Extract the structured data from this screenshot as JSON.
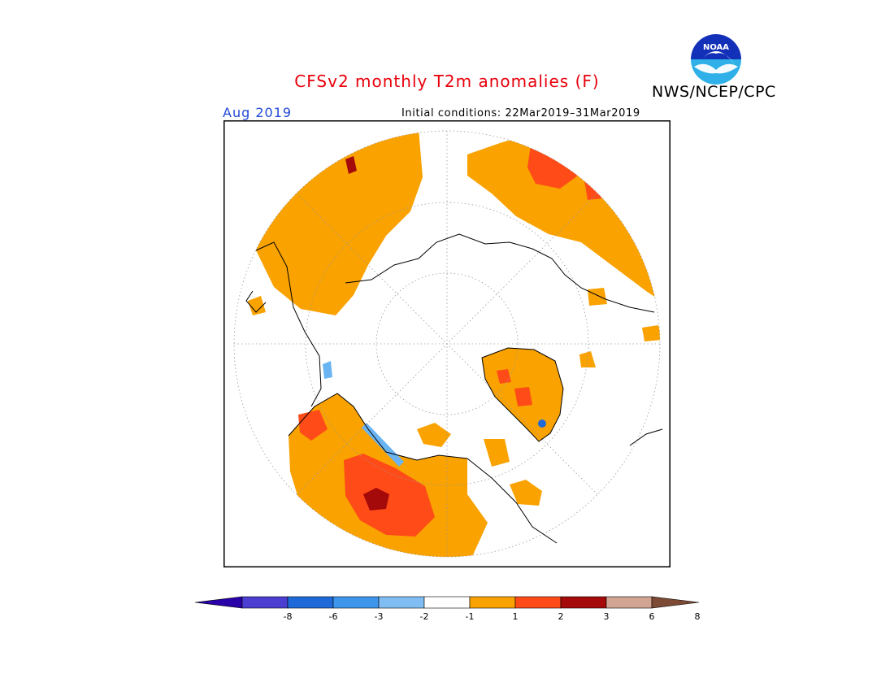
{
  "title": "CFSv2 monthly T2m anomalies (F)",
  "agency": "NWS/NCEP/CPC",
  "logo_text": "NOAA",
  "month": "Aug 2019",
  "initial_conditions": "Initial conditions: 22Mar2019–31Mar2019",
  "colors": {
    "title": "#e8000b",
    "month": "#2149d6",
    "anom_1_2": "#f9a200",
    "anom_2_3": "#ff4b17",
    "anom_3_6": "#a40a0a",
    "neg_1_2": "#6ab4f2"
  },
  "legend": {
    "bins": [
      {
        "color": "#2a00a8"
      },
      {
        "color": "#4b3ed1"
      },
      {
        "color": "#1f6ad8"
      },
      {
        "color": "#3e95ec"
      },
      {
        "color": "#7fbdf2"
      },
      {
        "color": "#ffffff"
      },
      {
        "color": "#f9a200"
      },
      {
        "color": "#ff4b17"
      },
      {
        "color": "#a40a0a"
      },
      {
        "color": "#d2a493"
      },
      {
        "color": "#7d4a35"
      }
    ],
    "tick_labels": [
      "-8",
      "-6",
      "-3",
      "-2",
      "-1",
      "1",
      "2",
      "3",
      "6",
      "8"
    ]
  }
}
